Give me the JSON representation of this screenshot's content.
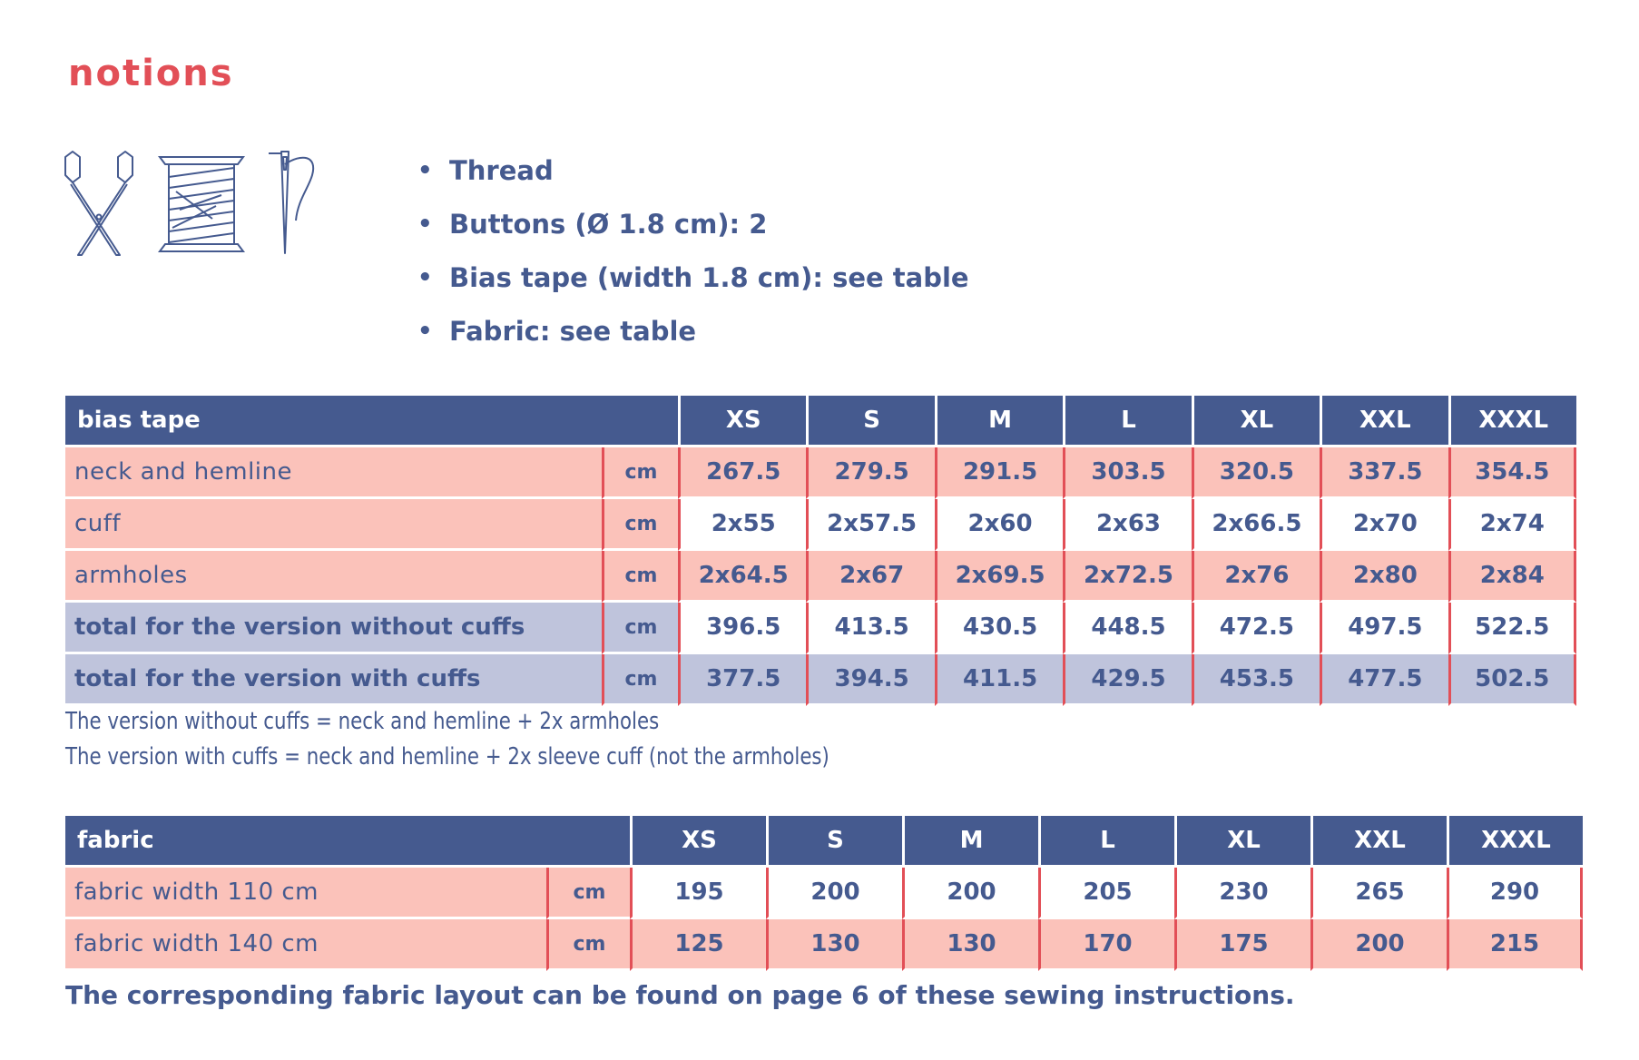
{
  "page_title": "notions",
  "icons": [
    "scissors-icon",
    "thread-spool-icon",
    "needle-icon"
  ],
  "notions": [
    "Thread",
    "Buttons (Ø 1.8 cm): 2",
    "Bias tape (width 1.8 cm): see table",
    "Fabric: see table"
  ],
  "bullet": "•",
  "bias_table": {
    "title": "bias tape",
    "sizes": [
      "XS",
      "S",
      "M",
      "L",
      "XL",
      "XXL",
      "XXXL"
    ],
    "rows": [
      {
        "label": "neck and hemline",
        "unit": "cm",
        "values": [
          "267.5",
          "279.5",
          "291.5",
          "303.5",
          "320.5",
          "337.5",
          "354.5"
        ]
      },
      {
        "label": "cuff",
        "unit": "cm",
        "values": [
          "2x55",
          "2x57.5",
          "2x60",
          "2x63",
          "2x66.5",
          "2x70",
          "2x74"
        ]
      },
      {
        "label": "armholes",
        "unit": "cm",
        "values": [
          "2x64.5",
          "2x67",
          "2x69.5",
          "2x72.5",
          "2x76",
          "2x80",
          "2x84"
        ]
      },
      {
        "label": "total for the version without cuffs",
        "unit": "cm",
        "values": [
          "396.5",
          "413.5",
          "430.5",
          "448.5",
          "472.5",
          "497.5",
          "522.5"
        ]
      },
      {
        "label": "total for the version with cuffs",
        "unit": "cm",
        "values": [
          "377.5",
          "394.5",
          "411.5",
          "429.5",
          "453.5",
          "477.5",
          "502.5"
        ]
      }
    ],
    "notes": [
      "The version without cuffs = neck and hemline + 2x armholes",
      "The version with cuffs = neck and hemline + 2x sleeve cuff (not the armholes)"
    ]
  },
  "fabric_table": {
    "title": "fabric",
    "sizes": [
      "XS",
      "S",
      "M",
      "L",
      "XL",
      "XXL",
      "XXXL"
    ],
    "rows": [
      {
        "label": "fabric width 110 cm",
        "unit": "cm",
        "values": [
          "195",
          "200",
          "200",
          "205",
          "230",
          "265",
          "290"
        ]
      },
      {
        "label": "fabric width 140 cm",
        "unit": "cm",
        "values": [
          "125",
          "130",
          "130",
          "170",
          "175",
          "200",
          "215"
        ]
      }
    ]
  },
  "footer_note": "The corresponding fabric layout can be found on page 6 of these sewing instructions.",
  "colors": {
    "accent_red": "#e24f57",
    "navy": "#455a8f",
    "pink_row": "#fbc2ba",
    "lavender_row": "#bfc4dc",
    "white": "#ffffff"
  }
}
